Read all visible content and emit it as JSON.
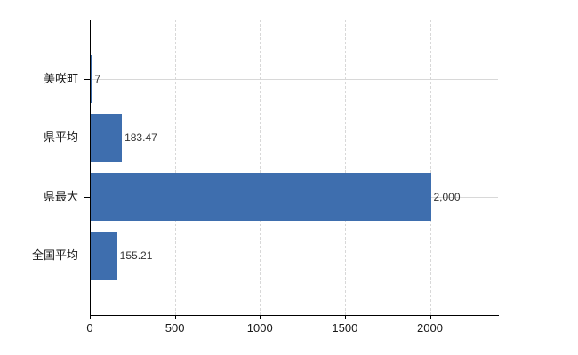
{
  "chart_data": {
    "type": "bar",
    "orientation": "horizontal",
    "title": "",
    "categories": [
      "美咲町",
      "県平均",
      "県最大",
      "全国平均"
    ],
    "values": [
      7,
      183.47,
      2000,
      155.21
    ],
    "value_labels": [
      "7",
      "183.47",
      "2,000",
      "155.21"
    ],
    "x_ticks": [
      0,
      500,
      1000,
      1500,
      2000
    ],
    "x_tick_labels": [
      "0",
      "500",
      "1000",
      "1500",
      "2000"
    ],
    "xlim": [
      0,
      2400
    ],
    "grid": true,
    "legend": false,
    "colors": {
      "bar": "#3e6eae",
      "gridline": "#d8d8d8",
      "axis": "#000000",
      "text": "#1a1a1a",
      "background": "#ffffff"
    }
  }
}
